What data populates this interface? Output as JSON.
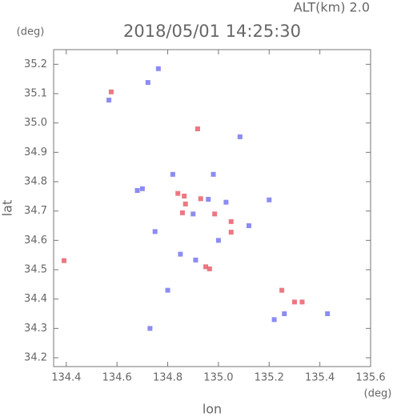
{
  "chart_data": {
    "type": "scatter",
    "annotation": "ALT(km) 2.0",
    "title": "2018/05/01 14:25:30",
    "y_unit": "(deg)",
    "x_unit": "(deg)",
    "ylabel": "lat",
    "xlabel": "lon",
    "xlim": [
      134.35,
      135.6
    ],
    "ylim": [
      34.17,
      35.25
    ],
    "xticks": [
      134.4,
      134.6,
      134.8,
      {
        "value": 135,
        "label": "135.0"
      },
      135.2,
      135.4,
      135.6
    ],
    "yticks": [
      34.2,
      34.3,
      34.4,
      34.5,
      34.6,
      34.7,
      34.8,
      34.9,
      {
        "value": 35,
        "label": "35.0"
      },
      35.1,
      35.2
    ],
    "series": [
      {
        "color": "#e8606c",
        "x": [
          134.391,
          134.577,
          134.918,
          134.865,
          134.858,
          134.93,
          134.87,
          135.05,
          135.05,
          134.95,
          134.965,
          134.985,
          135.25,
          135.3,
          135.33,
          134.84
        ],
        "values": [
          34.531,
          35.106,
          34.98,
          34.751,
          34.694,
          34.742,
          34.724,
          34.664,
          34.628,
          34.51,
          34.503,
          34.69,
          34.43,
          34.39,
          34.39,
          34.76
        ]
      },
      {
        "color": "#7878f0",
        "x": [
          134.568,
          134.722,
          134.763,
          135.085,
          134.82,
          134.7,
          134.96,
          134.9,
          135.0,
          135.2,
          134.91,
          134.85,
          134.98,
          135.26,
          135.22,
          135.43,
          134.73,
          134.75,
          134.8,
          135.12,
          134.68,
          135.03
        ],
        "values": [
          35.078,
          35.138,
          35.185,
          34.953,
          34.825,
          34.776,
          34.74,
          34.69,
          34.6,
          34.738,
          34.533,
          34.553,
          34.825,
          34.35,
          34.33,
          34.35,
          34.3,
          34.63,
          34.43,
          34.65,
          34.77,
          34.73
        ]
      }
    ]
  }
}
